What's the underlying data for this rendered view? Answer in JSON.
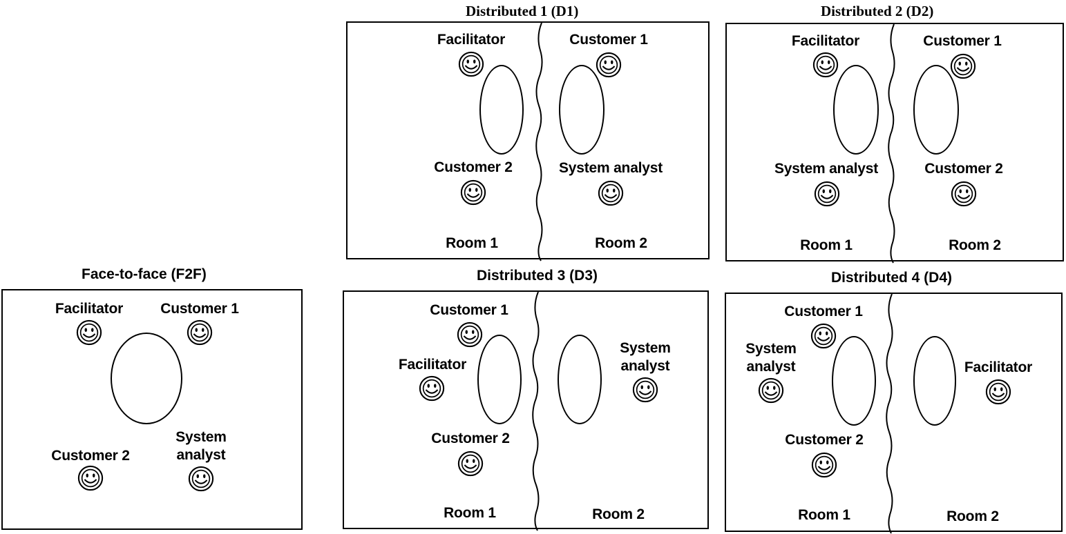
{
  "f2f": {
    "title": "Face-to-face (F2F)",
    "facilitator": "Facilitator",
    "customer1": "Customer 1",
    "customer2": "Customer 2",
    "analyst_line1": "System",
    "analyst_line2": "analyst"
  },
  "d1": {
    "title": "Distributed 1 (D1)",
    "facilitator": "Facilitator",
    "customer1": "Customer 1",
    "customer2": "Customer 2",
    "analyst": "System analyst",
    "room1": "Room 1",
    "room2": "Room 2"
  },
  "d2": {
    "title": "Distributed 2 (D2)",
    "facilitator": "Facilitator",
    "customer1": "Customer 1",
    "analyst": "System analyst",
    "customer2": "Customer 2",
    "room1": "Room 1",
    "room2": "Room 2"
  },
  "d3": {
    "title": "Distributed 3 (D3)",
    "customer1": "Customer 1",
    "facilitator": "Facilitator",
    "customer2": "Customer 2",
    "analyst_line1": "System",
    "analyst_line2": "analyst",
    "room1": "Room 1",
    "room2": "Room 2"
  },
  "d4": {
    "title": "Distributed 4 (D4)",
    "customer1": "Customer 1",
    "analyst_line1": "System",
    "analyst_line2": "analyst",
    "customer2": "Customer 2",
    "facilitator": "Facilitator",
    "room1": "Room 1",
    "room2": "Room 2"
  }
}
